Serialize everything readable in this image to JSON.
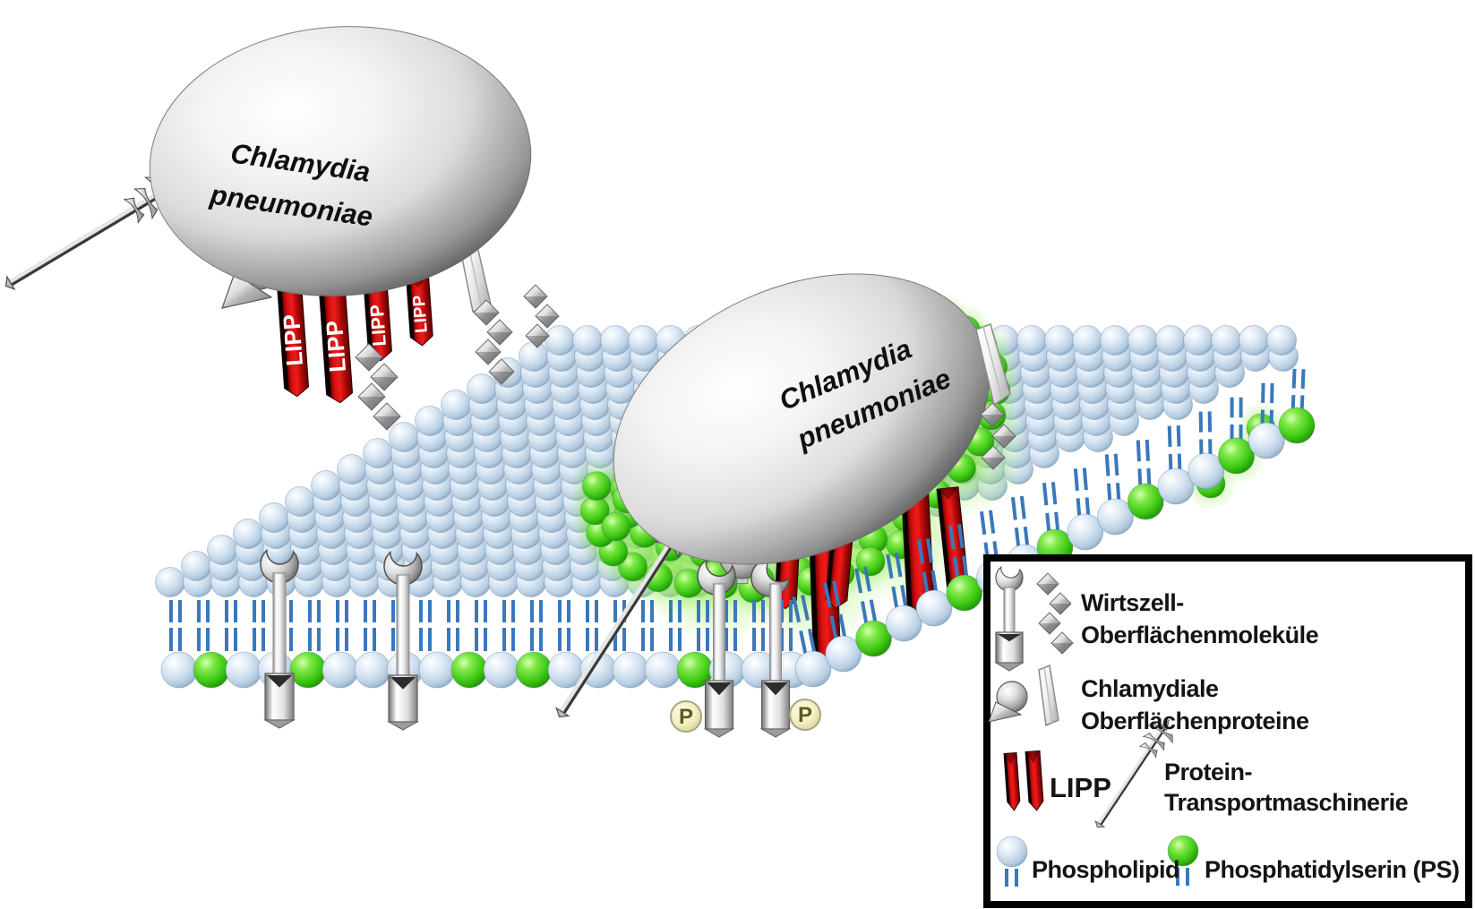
{
  "bacteria": {
    "left": {
      "line1": "Chlamydia",
      "line2": "pneumoniae"
    },
    "right": {
      "line1": "Chlamydia",
      "line2": "pneumoniae"
    }
  },
  "lipp_label": "LIPP",
  "phospho_badge": "P",
  "legend": {
    "host_molecules_line1": "Wirtszell-",
    "host_molecules_line2": "Oberflächenmoleküle",
    "chlamydial_proteins_line1": "Chlamydiale",
    "chlamydial_proteins_line2": "Oberflächenproteine",
    "lipp": "LIPP",
    "transport_line1": "Protein-",
    "transport_line2": "Transportmaschinerie",
    "phospholipid": "Phospholipid",
    "phosphatidylserine": "Phosphatidylserin (PS)"
  },
  "colors": {
    "lipp_red": "#d90f0f",
    "ps_green": "#3fca14",
    "phospholipid_blue": "#cfe0f0",
    "tail_blue": "#3a78bb",
    "bacterium_gray": "#d9d9d9",
    "legend_border": "#000000",
    "background": "#ffffff"
  }
}
